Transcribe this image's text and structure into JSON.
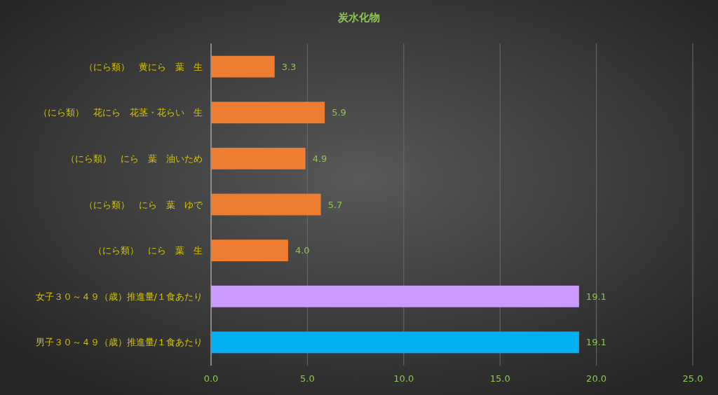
{
  "chart_data": {
    "type": "bar",
    "orientation": "horizontal",
    "title": "炭水化物",
    "categories": [
      "（にら類）　黄にら　葉　生",
      "（にら類）　花にら　花茎・花らい　生",
      "（にら類）　にら　葉　油いため",
      "（にら類）　にら　葉　ゆで",
      "（にら類）　にら　葉　生",
      "女子３０～４９（歳）推進量/１食あたり",
      "男子３０～４９（歳）推進量/１食あたり"
    ],
    "values": [
      3.3,
      5.9,
      4.9,
      5.7,
      4.0,
      19.1,
      19.1
    ],
    "colors": [
      "#ed7d31",
      "#ed7d31",
      "#ed7d31",
      "#ed7d31",
      "#ed7d31",
      "#cc99ff",
      "#00b0f0"
    ],
    "value_labels": [
      "3.3",
      "5.9",
      "4.9",
      "5.7",
      "4.0",
      "19.1",
      "19.1"
    ],
    "xlim": [
      0,
      25
    ],
    "xticks": [
      {
        "value": 0,
        "label": "0.0"
      },
      {
        "value": 5,
        "label": "5.0"
      },
      {
        "value": 10,
        "label": "10.0"
      },
      {
        "value": 15,
        "label": "15.0"
      },
      {
        "value": 20,
        "label": "20.0"
      },
      {
        "value": 25,
        "label": "25.0"
      }
    ],
    "grid": "x"
  }
}
